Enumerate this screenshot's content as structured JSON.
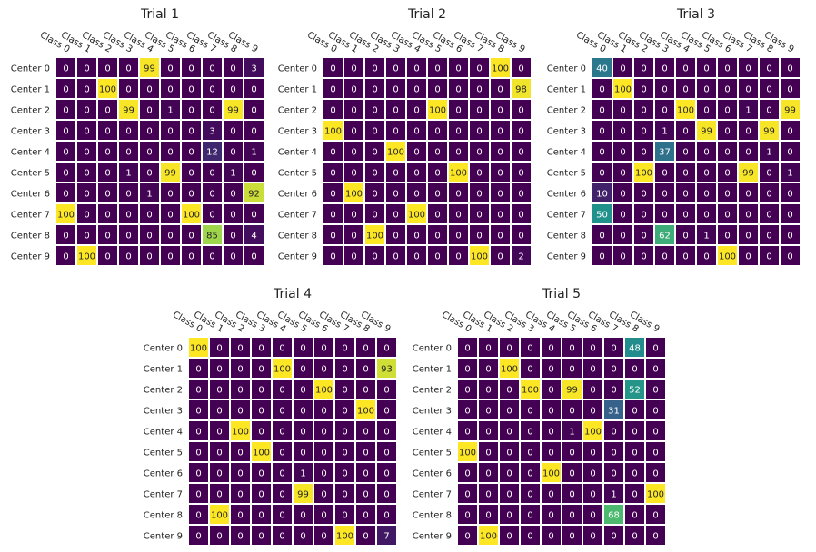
{
  "chart_data": [
    {
      "type": "heatmap",
      "title": "Trial 1",
      "x_labels": [
        "Class 0",
        "Class 1",
        "Class 2",
        "Class 3",
        "Class 4",
        "Class 5",
        "Class 6",
        "Class 7",
        "Class 8",
        "Class 9"
      ],
      "y_labels": [
        "Center 0",
        "Center 1",
        "Center 2",
        "Center 3",
        "Center 4",
        "Center 5",
        "Center 6",
        "Center 7",
        "Center 8",
        "Center 9"
      ],
      "zlim": [
        0,
        100
      ],
      "colormap": "viridis",
      "values": [
        [
          0,
          0,
          0,
          0,
          99,
          0,
          0,
          0,
          0,
          3
        ],
        [
          0,
          0,
          100,
          0,
          0,
          0,
          0,
          0,
          0,
          0
        ],
        [
          0,
          0,
          0,
          99,
          0,
          1,
          0,
          0,
          99,
          0
        ],
        [
          0,
          0,
          0,
          0,
          0,
          0,
          0,
          3,
          0,
          0
        ],
        [
          0,
          0,
          0,
          0,
          0,
          0,
          0,
          12,
          0,
          1
        ],
        [
          0,
          0,
          0,
          1,
          0,
          99,
          0,
          0,
          1,
          0
        ],
        [
          0,
          0,
          0,
          0,
          1,
          0,
          0,
          0,
          0,
          92
        ],
        [
          100,
          0,
          0,
          0,
          0,
          0,
          100,
          0,
          0,
          0
        ],
        [
          0,
          0,
          0,
          0,
          0,
          0,
          0,
          85,
          0,
          4
        ],
        [
          0,
          100,
          0,
          0,
          0,
          0,
          0,
          0,
          0,
          0
        ]
      ]
    },
    {
      "type": "heatmap",
      "title": "Trial 2",
      "x_labels": [
        "Class 0",
        "Class 1",
        "Class 2",
        "Class 3",
        "Class 4",
        "Class 5",
        "Class 6",
        "Class 7",
        "Class 8",
        "Class 9"
      ],
      "y_labels": [
        "Center 0",
        "Center 1",
        "Center 2",
        "Center 3",
        "Center 4",
        "Center 5",
        "Center 6",
        "Center 7",
        "Center 8",
        "Center 9"
      ],
      "zlim": [
        0,
        100
      ],
      "colormap": "viridis",
      "values": [
        [
          0,
          0,
          0,
          0,
          0,
          0,
          0,
          0,
          100,
          0
        ],
        [
          0,
          0,
          0,
          0,
          0,
          0,
          0,
          0,
          0,
          98
        ],
        [
          0,
          0,
          0,
          0,
          0,
          100,
          0,
          0,
          0,
          0
        ],
        [
          100,
          0,
          0,
          0,
          0,
          0,
          0,
          0,
          0,
          0
        ],
        [
          0,
          0,
          0,
          100,
          0,
          0,
          0,
          0,
          0,
          0
        ],
        [
          0,
          0,
          0,
          0,
          0,
          0,
          100,
          0,
          0,
          0
        ],
        [
          0,
          100,
          0,
          0,
          0,
          0,
          0,
          0,
          0,
          0
        ],
        [
          0,
          0,
          0,
          0,
          100,
          0,
          0,
          0,
          0,
          0
        ],
        [
          0,
          0,
          100,
          0,
          0,
          0,
          0,
          0,
          0,
          0
        ],
        [
          0,
          0,
          0,
          0,
          0,
          0,
          0,
          100,
          0,
          2
        ]
      ]
    },
    {
      "type": "heatmap",
      "title": "Trial 3",
      "x_labels": [
        "Class 0",
        "Class 1",
        "Class 2",
        "Class 3",
        "Class 4",
        "Class 5",
        "Class 6",
        "Class 7",
        "Class 8",
        "Class 9"
      ],
      "y_labels": [
        "Center 0",
        "Center 1",
        "Center 2",
        "Center 3",
        "Center 4",
        "Center 5",
        "Center 6",
        "Center 7",
        "Center 8",
        "Center 9"
      ],
      "zlim": [
        0,
        100
      ],
      "colormap": "viridis",
      "values": [
        [
          40,
          0,
          0,
          0,
          0,
          0,
          0,
          0,
          0,
          0
        ],
        [
          0,
          100,
          0,
          0,
          0,
          0,
          0,
          0,
          0,
          0
        ],
        [
          0,
          0,
          0,
          0,
          100,
          0,
          0,
          1,
          0,
          99
        ],
        [
          0,
          0,
          0,
          1,
          0,
          99,
          0,
          0,
          99,
          0
        ],
        [
          0,
          0,
          0,
          37,
          0,
          0,
          0,
          0,
          1,
          0
        ],
        [
          0,
          0,
          100,
          0,
          0,
          0,
          0,
          99,
          0,
          1
        ],
        [
          10,
          0,
          0,
          0,
          0,
          0,
          0,
          0,
          0,
          0
        ],
        [
          50,
          0,
          0,
          0,
          0,
          0,
          0,
          0,
          0,
          0
        ],
        [
          0,
          0,
          0,
          62,
          0,
          1,
          0,
          0,
          0,
          0
        ],
        [
          0,
          0,
          0,
          0,
          0,
          0,
          100,
          0,
          0,
          0
        ]
      ]
    },
    {
      "type": "heatmap",
      "title": "Trial 4",
      "x_labels": [
        "Class 0",
        "Class 1",
        "Class 2",
        "Class 3",
        "Class 4",
        "Class 5",
        "Class 6",
        "Class 7",
        "Class 8",
        "Class 9"
      ],
      "y_labels": [
        "Center 0",
        "Center 1",
        "Center 2",
        "Center 3",
        "Center 4",
        "Center 5",
        "Center 6",
        "Center 7",
        "Center 8",
        "Center 9"
      ],
      "zlim": [
        0,
        100
      ],
      "colormap": "viridis",
      "values": [
        [
          100,
          0,
          0,
          0,
          0,
          0,
          0,
          0,
          0,
          0
        ],
        [
          0,
          0,
          0,
          0,
          100,
          0,
          0,
          0,
          0,
          93
        ],
        [
          0,
          0,
          0,
          0,
          0,
          0,
          100,
          0,
          0,
          0
        ],
        [
          0,
          0,
          0,
          0,
          0,
          0,
          0,
          0,
          100,
          0
        ],
        [
          0,
          0,
          100,
          0,
          0,
          0,
          0,
          0,
          0,
          0
        ],
        [
          0,
          0,
          0,
          100,
          0,
          0,
          0,
          0,
          0,
          0
        ],
        [
          0,
          0,
          0,
          0,
          0,
          1,
          0,
          0,
          0,
          0
        ],
        [
          0,
          0,
          0,
          0,
          0,
          99,
          0,
          0,
          0,
          0
        ],
        [
          0,
          100,
          0,
          0,
          0,
          0,
          0,
          0,
          0,
          0
        ],
        [
          0,
          0,
          0,
          0,
          0,
          0,
          0,
          100,
          0,
          7
        ]
      ]
    },
    {
      "type": "heatmap",
      "title": "Trial 5",
      "x_labels": [
        "Class 0",
        "Class 1",
        "Class 2",
        "Class 3",
        "Class 4",
        "Class 5",
        "Class 6",
        "Class 7",
        "Class 8",
        "Class 9"
      ],
      "y_labels": [
        "Center 0",
        "Center 1",
        "Center 2",
        "Center 3",
        "Center 4",
        "Center 5",
        "Center 6",
        "Center 7",
        "Center 8",
        "Center 9"
      ],
      "zlim": [
        0,
        100
      ],
      "colormap": "viridis",
      "values": [
        [
          0,
          0,
          0,
          0,
          0,
          0,
          0,
          0,
          48,
          0
        ],
        [
          0,
          0,
          100,
          0,
          0,
          0,
          0,
          0,
          0,
          0
        ],
        [
          0,
          0,
          0,
          100,
          0,
          99,
          0,
          0,
          52,
          0
        ],
        [
          0,
          0,
          0,
          0,
          0,
          0,
          0,
          31,
          0,
          0
        ],
        [
          0,
          0,
          0,
          0,
          0,
          1,
          100,
          0,
          0,
          0
        ],
        [
          100,
          0,
          0,
          0,
          0,
          0,
          0,
          0,
          0,
          0
        ],
        [
          0,
          0,
          0,
          0,
          100,
          0,
          0,
          0,
          0,
          0
        ],
        [
          0,
          0,
          0,
          0,
          0,
          0,
          0,
          1,
          0,
          100
        ],
        [
          0,
          0,
          0,
          0,
          0,
          0,
          0,
          68,
          0,
          0
        ],
        [
          0,
          100,
          0,
          0,
          0,
          0,
          0,
          0,
          0,
          0
        ]
      ]
    }
  ]
}
